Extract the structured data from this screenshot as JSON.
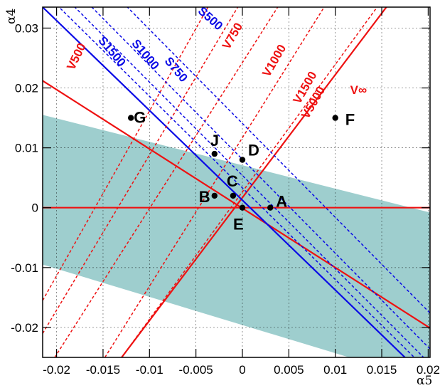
{
  "chart_data": {
    "type": "scatter",
    "xlabel": "α5",
    "ylabel": "α4",
    "xlim": [
      -0.0215,
      0.0202
    ],
    "ylim": [
      -0.025,
      0.0335
    ],
    "grid": true,
    "colors": {
      "red": "#ee1111",
      "blue": "#0a0ae6",
      "band": "#9ecece",
      "frame": "#000000"
    },
    "x_ticks": [
      {
        "value": -0.02,
        "label": "-0.02"
      },
      {
        "value": -0.015,
        "label": "-0.015"
      },
      {
        "value": -0.01,
        "label": "-0.01"
      },
      {
        "value": -0.005,
        "label": "-0.005"
      },
      {
        "value": 0,
        "label": "0"
      },
      {
        "value": 0.005,
        "label": "0.005"
      },
      {
        "value": 0.01,
        "label": "0.01"
      },
      {
        "value": 0.015,
        "label": "0.015"
      },
      {
        "value": 0.02,
        "label": "0.02"
      }
    ],
    "y_ticks": [
      {
        "value": 0.03,
        "label": "0.03"
      },
      {
        "value": 0.02,
        "label": "0.02"
      },
      {
        "value": 0.01,
        "label": "0.01"
      },
      {
        "value": 0,
        "label": "0"
      },
      {
        "value": -0.01,
        "label": "-0.01"
      },
      {
        "value": -0.02,
        "label": "-0.02"
      }
    ],
    "band": [
      [
        -0.0215,
        0.0155
      ],
      [
        0.0202,
        -0.0008
      ],
      [
        0.0202,
        -0.025
      ],
      [
        0.0115,
        -0.025
      ],
      [
        -0.0215,
        -0.0095
      ]
    ],
    "points": [
      {
        "label": "A",
        "x": 0.003,
        "y": 0.0
      },
      {
        "label": "B",
        "x": -0.003,
        "y": 0.002
      },
      {
        "label": "C",
        "x": -0.001,
        "y": 0.002
      },
      {
        "label": "D",
        "x": 0.0,
        "y": 0.008
      },
      {
        "label": "E",
        "x": 0.0,
        "y": 0.0
      },
      {
        "label": "F",
        "x": 0.01,
        "y": 0.015
      },
      {
        "label": "G",
        "x": -0.012,
        "y": 0.015
      },
      {
        "label": "J",
        "x": -0.003,
        "y": 0.009
      }
    ],
    "lines": [
      {
        "name": "V∞",
        "color": "red",
        "dash": false,
        "p1": [
          -0.013,
          -0.025
        ],
        "p2": [
          0.0155,
          0.0335
        ],
        "label": {
          "x": 0.0125,
          "y": 0.0195,
          "rot": 0,
          "size": 26
        }
      },
      {
        "name": "",
        "color": "red",
        "dash": false,
        "p1": [
          -0.0215,
          0.0212
        ],
        "p2": [
          0.0202,
          -0.0201
        ]
      },
      {
        "name": "",
        "color": "red",
        "dash": false,
        "p1": [
          -0.0215,
          0.0
        ],
        "p2": [
          0.0202,
          0.0
        ]
      },
      {
        "name": "",
        "color": "blue",
        "dash": false,
        "p1": [
          -0.0215,
          0.0335
        ],
        "p2": [
          0.0175,
          -0.025
        ]
      },
      {
        "name": "V500",
        "color": "red",
        "dash": true,
        "p1": [
          -0.0215,
          -0.0155
        ],
        "p2": [
          -0.0037,
          0.0335
        ],
        "label": {
          "x": -0.0178,
          "y": 0.0252,
          "rot": -64,
          "size": 17
        }
      },
      {
        "name": "V750",
        "color": "red",
        "dash": true,
        "p1": [
          -0.0215,
          -0.021
        ],
        "p2": [
          -0.0005,
          0.0335
        ],
        "label": {
          "x": -0.001,
          "y": 0.0286,
          "rot": -60,
          "size": 17
        }
      },
      {
        "name": "V1000",
        "color": "red",
        "dash": true,
        "p1": [
          -0.0202,
          -0.025
        ],
        "p2": [
          0.0038,
          0.0335
        ],
        "label": {
          "x": 0.0035,
          "y": 0.0245,
          "rot": -60,
          "size": 17
        }
      },
      {
        "name": "V1500",
        "color": "red",
        "dash": true,
        "p1": [
          -0.0148,
          -0.025
        ],
        "p2": [
          0.0088,
          0.0335
        ],
        "label": {
          "x": 0.0068,
          "y": 0.02,
          "rot": -60,
          "size": 17
        }
      },
      {
        "name": "V5000",
        "color": "red",
        "dash": true,
        "p1": [
          -0.013,
          -0.025
        ],
        "p2": [
          0.0145,
          0.0335
        ],
        "label": {
          "x": 0.0077,
          "y": 0.0175,
          "rot": -60,
          "size": 17
        }
      },
      {
        "name": "S1500",
        "color": "blue",
        "dash": true,
        "p1": [
          -0.0215,
          0.0362
        ],
        "p2": [
          0.0185,
          -0.025
        ],
        "label": {
          "x": -0.0141,
          "y": 0.026,
          "rot": 50,
          "size": 17
        }
      },
      {
        "name": "S1000",
        "color": "blue",
        "dash": true,
        "p1": [
          -0.0215,
          0.0389
        ],
        "p2": [
          0.0195,
          -0.025
        ],
        "label": {
          "x": -0.0105,
          "y": 0.0255,
          "rot": 50,
          "size": 17
        }
      },
      {
        "name": "S750",
        "color": "blue",
        "dash": true,
        "p1": [
          -0.0215,
          0.0418
        ],
        "p2": [
          0.0202,
          -0.0236
        ],
        "label": {
          "x": -0.0072,
          "y": 0.023,
          "rot": 50,
          "size": 17
        }
      },
      {
        "name": "S500",
        "color": "blue",
        "dash": true,
        "p1": [
          -0.0215,
          0.0478
        ],
        "p2": [
          0.0202,
          -0.0176
        ],
        "label": {
          "x": -0.0035,
          "y": 0.0315,
          "rot": 42,
          "size": 17
        }
      }
    ]
  }
}
